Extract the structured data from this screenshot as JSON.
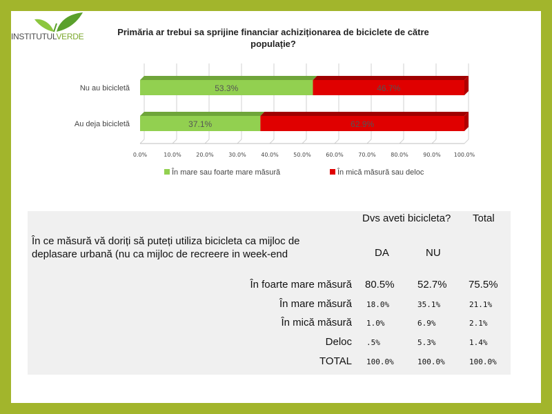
{
  "logo": {
    "text_left": "INSTITUTUL",
    "text_right": "VERDE"
  },
  "chart_data": {
    "type": "bar",
    "orientation": "horizontal",
    "stacked": true,
    "title": "Primăria ar trebui sa sprijine financiar achiziționarea de biciclete de către populație?",
    "categories": [
      "Nu au bicicletă",
      "Au deja bicicletă"
    ],
    "series": [
      {
        "name": "În mare sau foarte mare măsură",
        "color": "#92d050",
        "values": [
          53.3,
          37.1
        ],
        "labels": [
          "53.3%",
          "37.1%"
        ]
      },
      {
        "name": "În mică măsură sau deloc",
        "color": "#e00000",
        "values": [
          46.7,
          62.9
        ],
        "labels": [
          "46.7%",
          "62.9%"
        ]
      }
    ],
    "xlim": [
      0,
      100
    ],
    "xticks": [
      "0.0%",
      "10.0%",
      "20.0%",
      "30.0%",
      "40.0%",
      "50.0%",
      "60.0%",
      "70.0%",
      "80.0%",
      "90.0%",
      "100.0%"
    ],
    "grid": true,
    "legend": "bottom"
  },
  "table": {
    "header_group": "Dvs aveti bicicleta?",
    "header_total": "Total",
    "question": "În ce măsură vă doriți să puteți utiliza bicicleta ca mijloc de deplasare urbană (nu ca mijloc de recreere in week-end",
    "col_da": "DA",
    "col_nu": "NU",
    "rows": [
      {
        "label": "În foarte mare măsură",
        "da": "80.5%",
        "nu": "52.7%",
        "total": "75.5%"
      },
      {
        "label": "În mare măsură",
        "da": "18.0%",
        "nu": "35.1%",
        "total": "21.1%"
      },
      {
        "label": "În mică măsură",
        "da": "1.0%",
        "nu": "6.9%",
        "total": "2.1%"
      },
      {
        "label": "Deloc",
        "da": ".5%",
        "nu": "5.3%",
        "total": "1.4%"
      },
      {
        "label": "TOTAL",
        "da": "100.0%",
        "nu": "100.0%",
        "total": "100.0%"
      }
    ]
  }
}
